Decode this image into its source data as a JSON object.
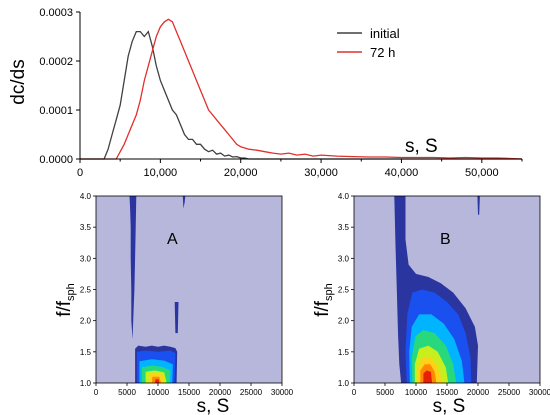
{
  "chart_data": [
    {
      "type": "line",
      "ylabel": "dc/ds",
      "xlabel": "s, S",
      "xlim": [
        0,
        55000
      ],
      "ylim": [
        0,
        0.0003
      ],
      "x_ticks": [
        0,
        10000,
        20000,
        30000,
        40000,
        50000
      ],
      "x_tick_labels": [
        "0",
        "10,000",
        "20,000",
        "30,000",
        "40,000",
        "50,000"
      ],
      "y_ticks": [
        0,
        0.0001,
        0.0002,
        0.0003
      ],
      "y_tick_labels": [
        "0.0000",
        "0.0001",
        "0.0002",
        "0.0003"
      ],
      "legend_position": "top-right",
      "series": [
        {
          "name": "initial",
          "color": "#404040",
          "x": [
            0,
            3000,
            3500,
            4000,
            4500,
            5000,
            5500,
            6000,
            6500,
            7000,
            7500,
            8000,
            8500,
            9000,
            9500,
            10000,
            10500,
            11000,
            11500,
            12000,
            12500,
            13000,
            13500,
            14000,
            14500,
            15000,
            15500,
            16000,
            16500,
            17000,
            17500,
            18000,
            18500,
            19000,
            19500,
            20000,
            20500,
            21000,
            55000
          ],
          "y": [
            0,
            0,
            2e-05,
            5e-05,
            8e-05,
            0.00011,
            0.00016,
            0.00021,
            0.00024,
            0.00026,
            0.00026,
            0.00025,
            0.00026,
            0.00023,
            0.00019,
            0.00016,
            0.00014,
            0.00012,
            0.0001,
            9e-05,
            7e-05,
            5e-05,
            4e-05,
            4e-05,
            3e-05,
            3e-05,
            2e-05,
            1.5e-05,
            1.8e-05,
            1e-05,
            1.2e-05,
            6e-06,
            8e-06,
            4e-06,
            5e-06,
            2e-06,
            2e-06,
            0,
            0
          ]
        },
        {
          "name": "72 h",
          "color": "#e0302c",
          "x": [
            0,
            4500,
            5000,
            5500,
            6000,
            6500,
            7000,
            7500,
            8000,
            8500,
            9000,
            9500,
            10000,
            10500,
            11000,
            11500,
            12000,
            12500,
            13000,
            13500,
            14000,
            14500,
            15000,
            15500,
            16000,
            16500,
            17000,
            17500,
            18000,
            18500,
            19000,
            19500,
            20000,
            21000,
            22000,
            23000,
            24000,
            25000,
            26000,
            27000,
            28000,
            29000,
            30000,
            32000,
            34000,
            36000,
            38000,
            40000,
            42000,
            44000,
            46000,
            48000,
            50000,
            52000,
            55000
          ],
          "y": [
            0,
            0,
            1.5e-05,
            3e-05,
            5e-05,
            7e-05,
            9e-05,
            0.00012,
            0.00016,
            0.00019,
            0.00022,
            0.00025,
            0.00027,
            0.00028,
            0.000285,
            0.00028,
            0.00026,
            0.00024,
            0.00022,
            0.0002,
            0.00018,
            0.00016,
            0.00014,
            0.00012,
            0.0001,
            9e-05,
            8e-05,
            7e-05,
            6e-05,
            5e-05,
            4e-05,
            3e-05,
            2.5e-05,
            2e-05,
            1.8e-05,
            1.5e-05,
            1.2e-05,
            1e-05,
            1.2e-05,
            8e-06,
            1e-05,
            6e-06,
            8e-06,
            6e-06,
            5e-06,
            4e-06,
            4e-06,
            3e-06,
            3e-06,
            3e-06,
            2e-06,
            3e-06,
            2e-06,
            2e-06,
            0
          ]
        }
      ]
    },
    {
      "type": "heatmap",
      "panel_label": "A",
      "xlabel": "s, S",
      "ylabel_main": "f/f",
      "ylabel_sub": "sph",
      "xlim": [
        0,
        30000
      ],
      "ylim": [
        1.0,
        4.0
      ],
      "x_ticks": [
        0,
        5000,
        10000,
        15000,
        20000,
        25000,
        30000
      ],
      "x_tick_labels": [
        "0",
        "5000",
        "10000",
        "15000",
        "20000",
        "25000",
        "30000"
      ],
      "y_ticks": [
        1.0,
        1.5,
        2.0,
        2.5,
        3.0,
        3.5,
        4.0
      ],
      "y_tick_labels": [
        "1.0",
        "1.5",
        "2.0",
        "2.5",
        "3.0",
        "3.5",
        "4.0"
      ],
      "background_color": "#b7b7dc",
      "level_colors": [
        "#2b35a0",
        "#1a4ff0",
        "#00b4ff",
        "#27d97c",
        "#c8ef1d",
        "#ffd21a",
        "#ff8a00",
        "#e81f05"
      ],
      "regions": [
        {
          "level": 0,
          "points": [
            [
              5400,
              4.0
            ],
            [
              6500,
              4.0
            ],
            [
              6400,
              3.5
            ],
            [
              6300,
              3.0
            ],
            [
              6200,
              2.5
            ],
            [
              6000,
              2.0
            ],
            [
              5900,
              1.7
            ],
            [
              5700,
              2.0
            ],
            [
              5700,
              2.5
            ],
            [
              5600,
              3.0
            ],
            [
              5600,
              3.5
            ],
            [
              5500,
              3.8
            ]
          ]
        },
        {
          "level": 0,
          "points": [
            [
              14000,
              4.0
            ],
            [
              14400,
              4.0
            ],
            [
              14300,
              3.9
            ],
            [
              14100,
              3.8
            ]
          ]
        },
        {
          "level": 0,
          "points": [
            [
              12700,
              2.3
            ],
            [
              13300,
              2.3
            ],
            [
              13200,
              1.8
            ],
            [
              12800,
              1.8
            ]
          ]
        },
        {
          "level": 0,
          "points": [
            [
              6300,
              1.0
            ],
            [
              6300,
              1.55
            ],
            [
              6800,
              1.6
            ],
            [
              8000,
              1.58
            ],
            [
              9000,
              1.6
            ],
            [
              10000,
              1.58
            ],
            [
              11000,
              1.6
            ],
            [
              12000,
              1.58
            ],
            [
              12800,
              1.56
            ],
            [
              13100,
              1.5
            ],
            [
              13000,
              1.0
            ]
          ]
        },
        {
          "level": 1,
          "points": [
            [
              6600,
              1.0
            ],
            [
              6600,
              1.5
            ],
            [
              8000,
              1.52
            ],
            [
              10000,
              1.5
            ],
            [
              12000,
              1.52
            ],
            [
              12800,
              1.48
            ],
            [
              12700,
              1.0
            ]
          ]
        },
        {
          "level": 2,
          "points": [
            [
              7000,
              1.0
            ],
            [
              7000,
              1.35
            ],
            [
              9000,
              1.38
            ],
            [
              11000,
              1.36
            ],
            [
              12400,
              1.3
            ],
            [
              12300,
              1.0
            ]
          ]
        },
        {
          "level": 3,
          "points": [
            [
              7400,
              1.0
            ],
            [
              7400,
              1.25
            ],
            [
              9000,
              1.28
            ],
            [
              10600,
              1.26
            ],
            [
              12000,
              1.2
            ],
            [
              11900,
              1.0
            ]
          ]
        },
        {
          "level": 4,
          "points": [
            [
              8000,
              1.0
            ],
            [
              8000,
              1.18
            ],
            [
              9500,
              1.2
            ],
            [
              11000,
              1.17
            ],
            [
              11400,
              1.0
            ]
          ]
        },
        {
          "level": 5,
          "points": [
            [
              8600,
              1.0
            ],
            [
              8700,
              1.14
            ],
            [
              9800,
              1.16
            ],
            [
              10800,
              1.12
            ],
            [
              10900,
              1.0
            ]
          ]
        },
        {
          "level": 6,
          "points": [
            [
              9000,
              1.0
            ],
            [
              9100,
              1.1
            ],
            [
              10200,
              1.1
            ],
            [
              10500,
              1.0
            ]
          ]
        },
        {
          "level": 7,
          "points": [
            [
              9500,
              1.0
            ],
            [
              9600,
              1.06
            ],
            [
              10100,
              1.06
            ],
            [
              10200,
              1.0
            ]
          ]
        }
      ]
    },
    {
      "type": "heatmap",
      "panel_label": "B",
      "xlabel": "s, S",
      "ylabel_main": "f/f",
      "ylabel_sub": "sph",
      "xlim": [
        0,
        30000
      ],
      "ylim": [
        1.0,
        4.0
      ],
      "x_ticks": [
        0,
        5000,
        10000,
        15000,
        20000,
        25000,
        30000
      ],
      "x_tick_labels": [
        "0",
        "5000",
        "10000",
        "15000",
        "20000",
        "25000",
        "30000"
      ],
      "y_ticks": [
        1.0,
        1.5,
        2.0,
        2.5,
        3.0,
        3.5,
        4.0
      ],
      "y_tick_labels": [
        "1.0",
        "1.5",
        "2.0",
        "2.5",
        "3.0",
        "3.5",
        "4.0"
      ],
      "background_color": "#b7b7dc",
      "level_colors": [
        "#2b35a0",
        "#1a4ff0",
        "#00b4ff",
        "#27d97c",
        "#c8ef1d",
        "#ffd21a",
        "#ff8a00",
        "#e81f05"
      ],
      "regions": [
        {
          "level": 0,
          "points": [
            [
              6500,
              4.0
            ],
            [
              8300,
              4.0
            ],
            [
              8300,
              3.3
            ],
            [
              8800,
              2.9
            ],
            [
              10000,
              2.75
            ],
            [
              12000,
              2.7
            ],
            [
              14000,
              2.6
            ],
            [
              16000,
              2.45
            ],
            [
              18000,
              2.2
            ],
            [
              19500,
              1.9
            ],
            [
              20000,
              1.6
            ],
            [
              19800,
              1.0
            ],
            [
              7600,
              1.0
            ],
            [
              7300,
              1.3
            ],
            [
              7100,
              1.8
            ],
            [
              6900,
              2.5
            ],
            [
              6700,
              3.2
            ]
          ]
        },
        {
          "level": 0,
          "points": [
            [
              19900,
              4.0
            ],
            [
              20300,
              4.0
            ],
            [
              20200,
              3.7
            ],
            [
              20000,
              3.7
            ]
          ]
        },
        {
          "level": 1,
          "points": [
            [
              8500,
              1.0
            ],
            [
              8300,
              1.5
            ],
            [
              8600,
              2.1
            ],
            [
              9400,
              2.45
            ],
            [
              11000,
              2.5
            ],
            [
              13000,
              2.45
            ],
            [
              15000,
              2.3
            ],
            [
              16800,
              2.1
            ],
            [
              18000,
              1.8
            ],
            [
              18800,
              1.4
            ],
            [
              18900,
              1.0
            ]
          ]
        },
        {
          "level": 2,
          "points": [
            [
              9000,
              1.0
            ],
            [
              8900,
              1.5
            ],
            [
              9300,
              1.9
            ],
            [
              10500,
              2.1
            ],
            [
              12500,
              2.1
            ],
            [
              14500,
              1.95
            ],
            [
              16200,
              1.7
            ],
            [
              17400,
              1.35
            ],
            [
              17800,
              1.0
            ]
          ]
        },
        {
          "level": 3,
          "points": [
            [
              9400,
              1.0
            ],
            [
              9300,
              1.4
            ],
            [
              9900,
              1.75
            ],
            [
              11200,
              1.85
            ],
            [
              13000,
              1.8
            ],
            [
              14800,
              1.6
            ],
            [
              16000,
              1.3
            ],
            [
              16500,
              1.0
            ]
          ]
        },
        {
          "level": 4,
          "points": [
            [
              9800,
              1.0
            ],
            [
              9800,
              1.3
            ],
            [
              10500,
              1.55
            ],
            [
              12000,
              1.6
            ],
            [
              13500,
              1.5
            ],
            [
              14800,
              1.25
            ],
            [
              15200,
              1.0
            ]
          ]
        },
        {
          "level": 5,
          "points": [
            [
              10300,
              1.0
            ],
            [
              10300,
              1.25
            ],
            [
              11000,
              1.4
            ],
            [
              12200,
              1.42
            ],
            [
              13300,
              1.3
            ],
            [
              14000,
              1.1
            ],
            [
              14200,
              1.0
            ]
          ]
        },
        {
          "level": 6,
          "points": [
            [
              10700,
              1.0
            ],
            [
              10700,
              1.2
            ],
            [
              11400,
              1.3
            ],
            [
              12300,
              1.3
            ],
            [
              13000,
              1.18
            ],
            [
              13300,
              1.0
            ]
          ]
        },
        {
          "level": 7,
          "points": [
            [
              11200,
              1.0
            ],
            [
              11200,
              1.15
            ],
            [
              11700,
              1.2
            ],
            [
              12400,
              1.18
            ],
            [
              12600,
              1.0
            ]
          ]
        }
      ]
    }
  ]
}
